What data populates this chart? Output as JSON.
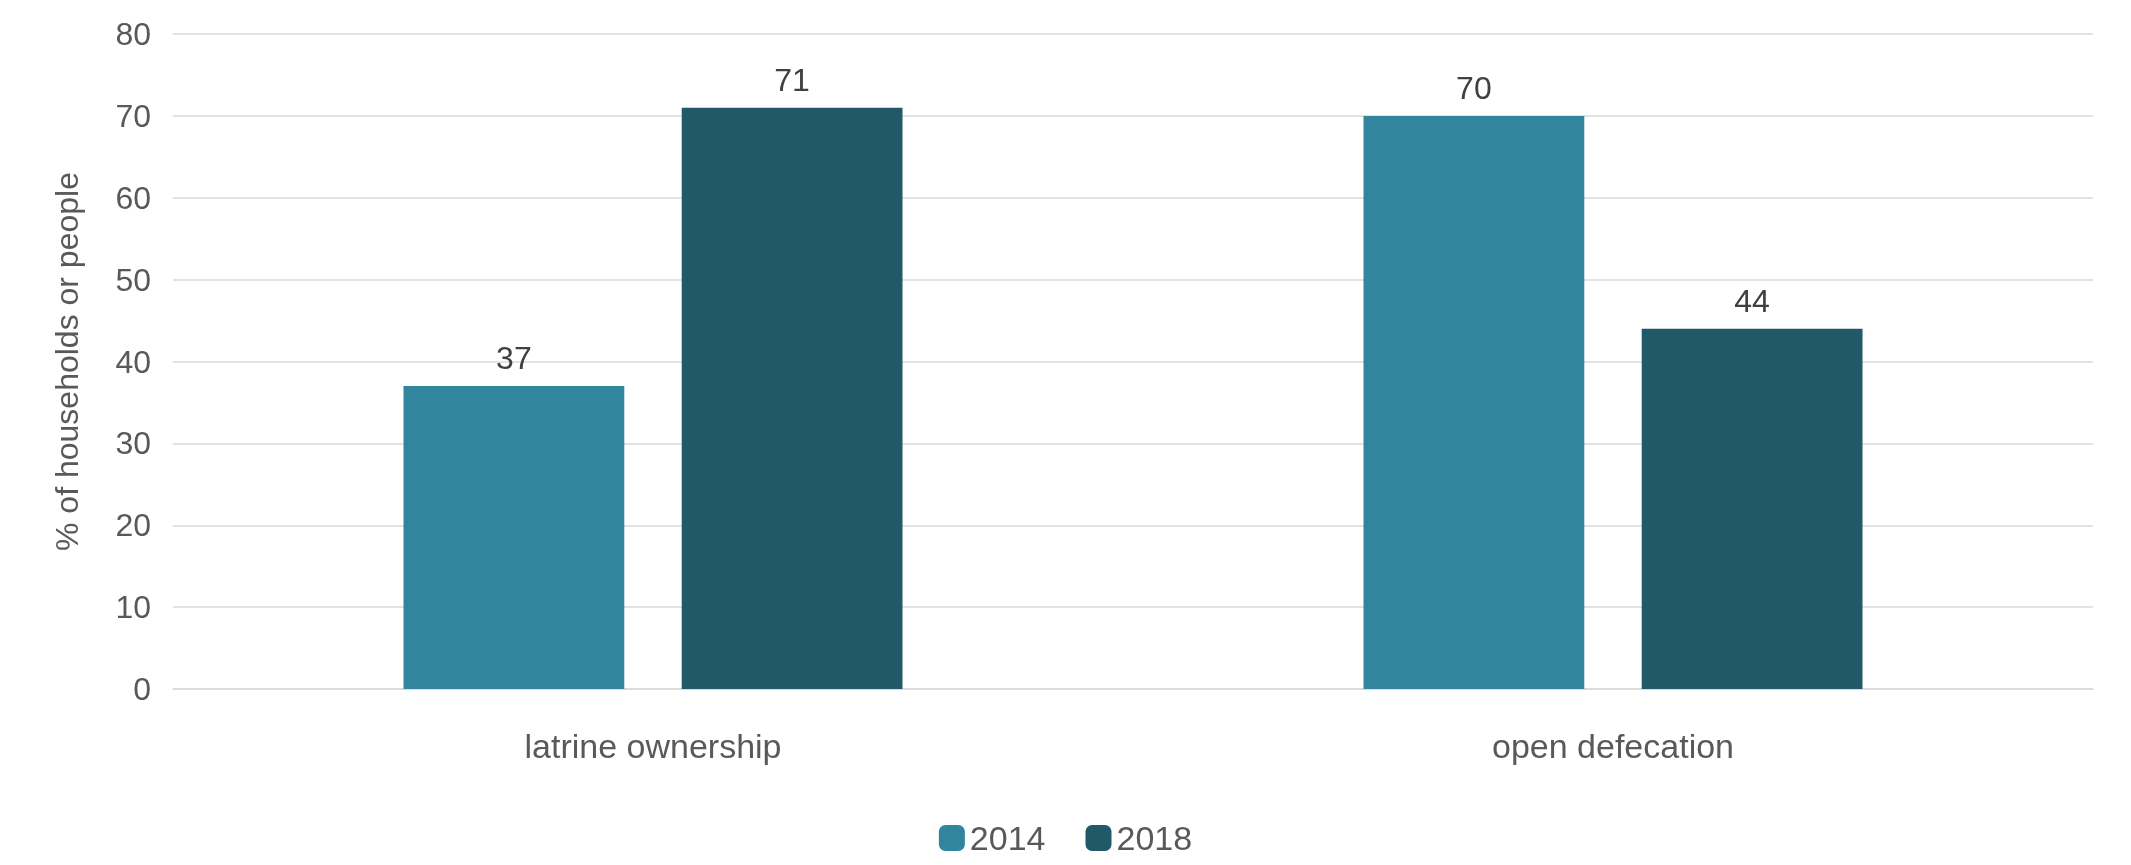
{
  "chart_data": {
    "type": "bar",
    "ylabel": "% of households or people",
    "categories": [
      "latrine ownership",
      "open defecation"
    ],
    "series": [
      {
        "name": "2014",
        "color": "#31869e",
        "values": [
          37,
          70
        ]
      },
      {
        "name": "2018",
        "color": "#215968",
        "values": [
          71,
          44
        ]
      }
    ],
    "ylim": [
      0,
      80
    ],
    "yticks": [
      0,
      10,
      20,
      30,
      40,
      50,
      60,
      70,
      80
    ],
    "grid": "y",
    "legend": "bottom",
    "data_labels": true
  }
}
